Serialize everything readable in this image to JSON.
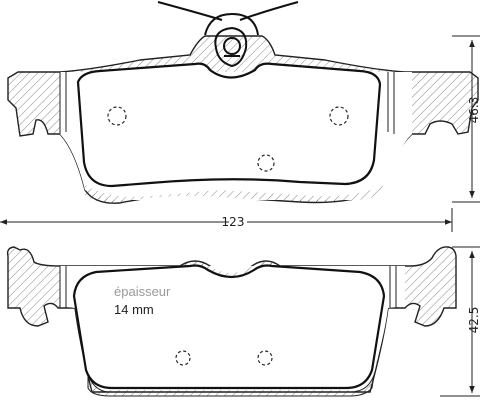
{
  "dimensions": {
    "width": "123",
    "height_top": "46.3",
    "height_bottom": "42.5"
  },
  "note": {
    "label": "épaisseur",
    "thickness": "14 mm"
  }
}
